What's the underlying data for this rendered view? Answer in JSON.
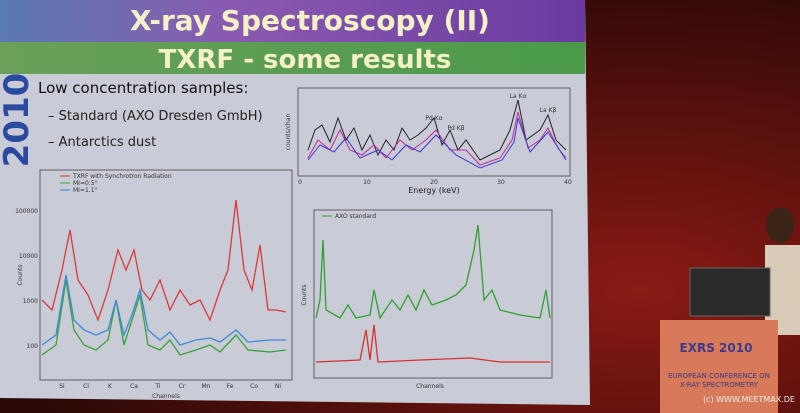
{
  "slide": {
    "title": "X-ray Spectroscopy (II)",
    "subtitle": "TXRF - some results",
    "year": "2010",
    "heading": "Low concentration samples:",
    "bullets": [
      "Standard (AXO Dresden GmbH)",
      "Antarctics dust"
    ]
  },
  "top_chart": {
    "y_label": "counts/chan",
    "x_label": "Energy (keV)",
    "x_ticks": [
      "0",
      "10",
      "20",
      "30",
      "40"
    ],
    "peaks": [
      "La Kα",
      "La Kβ",
      "Pd Kα",
      "Pd Kβ"
    ]
  },
  "left_chart": {
    "legend": [
      "TXRF with Synchrotron Radiation",
      "MI=0.5°",
      "MI=1.1°"
    ],
    "y_label": "Counts",
    "x_label": "Channels",
    "y_ticks": [
      "100000",
      "10000",
      "1000",
      "100"
    ],
    "x_ticks": [
      "Si",
      "Cl",
      "K",
      "Ca",
      "Ti",
      "Cr",
      "Mn",
      "Fe",
      "Co",
      "Ni"
    ]
  },
  "right_chart": {
    "legend": "AXO standard",
    "y_label": "Counts",
    "x_label": "Channels"
  },
  "podium": {
    "logo": "EXRS 2010",
    "text": "EUROPEAN CONFERENCE ON X-RAY SPECTROMETRY"
  },
  "watermark": "(c) WWW.MEETMAX.DE"
}
